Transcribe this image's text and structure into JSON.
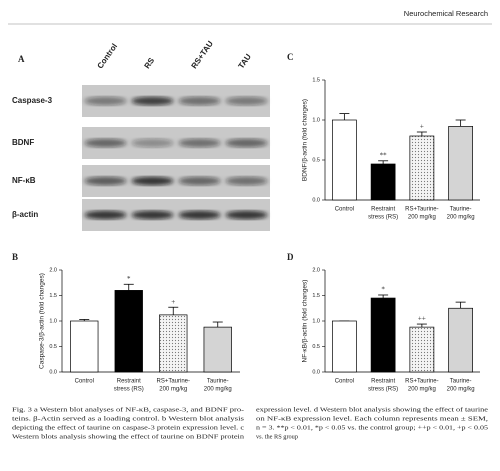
{
  "header": {
    "journal": "Neurochemical Research"
  },
  "panel_a": {
    "label": "A",
    "lanes": [
      "Control",
      "RS",
      "RS+TAU",
      "TAU"
    ],
    "rows": [
      "Caspase-3",
      "BDNF",
      "NF-κB",
      "β-actin"
    ]
  },
  "chart_data": [
    {
      "type": "bar",
      "panel": "C",
      "ylabel": "BDNF/β-actin (fold changes)",
      "categories": [
        [
          "Control"
        ],
        [
          "Restraint",
          "stress (RS)"
        ],
        [
          "RS+Taurine-",
          "200 mg/kg"
        ],
        [
          "Taurine-",
          "200 mg/kg"
        ]
      ],
      "values": [
        1.0,
        0.45,
        0.8,
        0.92
      ],
      "errors": [
        0.08,
        0.04,
        0.05,
        0.08
      ],
      "markers": [
        null,
        "**",
        "+",
        null
      ],
      "colors": [
        "#ffffff",
        "#000000",
        "#ececec",
        "#d4d4d4"
      ],
      "hatch": [
        false,
        false,
        true,
        false
      ],
      "ylim": [
        0,
        1.5
      ],
      "yticks": [
        {
          "value": 0,
          "label": "0.0"
        },
        0.5,
        {
          "value": 1,
          "label": "1.0"
        },
        1.5
      ]
    },
    {
      "type": "bar",
      "panel": "B",
      "ylabel": "Caspase-3/β-actin (fold changes)",
      "categories": [
        [
          "Control"
        ],
        [
          "Restraint",
          "stress (RS)"
        ],
        [
          "RS+Taurine-",
          "200 mg/kg"
        ],
        [
          "Taurine-",
          "200 mg/kg"
        ]
      ],
      "values": [
        1.0,
        1.6,
        1.12,
        0.88
      ],
      "errors": [
        0.03,
        0.12,
        0.15,
        0.1
      ],
      "markers": [
        null,
        "*",
        "+",
        null
      ],
      "colors": [
        "#ffffff",
        "#000000",
        "#ececec",
        "#d4d4d4"
      ],
      "hatch": [
        false,
        false,
        true,
        false
      ],
      "ylim": [
        0,
        2
      ],
      "yticks": [
        {
          "value": 0,
          "label": "0.0"
        },
        0.5,
        {
          "value": 1,
          "label": "1.0"
        },
        1.5,
        {
          "value": 2,
          "label": "2.0"
        }
      ]
    },
    {
      "type": "bar",
      "panel": "D",
      "ylabel": "NF-κB/β-actin (fold changes)",
      "categories": [
        [
          "Control"
        ],
        [
          "Restraint",
          "stress (RS)"
        ],
        [
          "RS+Taurine-",
          "200 mg/kg"
        ],
        [
          "Taurine-",
          "200 mg/kg"
        ]
      ],
      "values": [
        1.0,
        1.45,
        0.88,
        1.25
      ],
      "errors": [
        0.0,
        0.06,
        0.06,
        0.12
      ],
      "markers": [
        null,
        "*",
        "++",
        null
      ],
      "colors": [
        "#ffffff",
        "#000000",
        "#ececec",
        "#d4d4d4"
      ],
      "hatch": [
        false,
        false,
        true,
        false
      ],
      "ylim": [
        0,
        2
      ],
      "yticks": [
        {
          "value": 0,
          "label": "0.0"
        },
        0.5,
        {
          "value": 1,
          "label": "1.0"
        },
        1.5,
        {
          "value": 2,
          "label": "2.0"
        }
      ]
    }
  ],
  "caption": {
    "left": [
      "Fig. 3  a Western blot analyses of NF-κB, caspase-3, and BDNF pro-",
      "teins. β-Actin served as a loading control. b Western blot analysis",
      "depicting the effect of taurine on caspase-3 protein expression level. c",
      "Western blots analysis showing the effect of taurine on BDNF protein"
    ],
    "right": [
      "expression level. d Western blot analysis showing the effect of taurine",
      "on NF-κB expression level. Each column represents mean ± SEM,",
      "n = 3. **p < 0.01, *p < 0.05 vs. the control group; ++p < 0.01, +p < 0.05",
      "vs. the RS group"
    ]
  }
}
